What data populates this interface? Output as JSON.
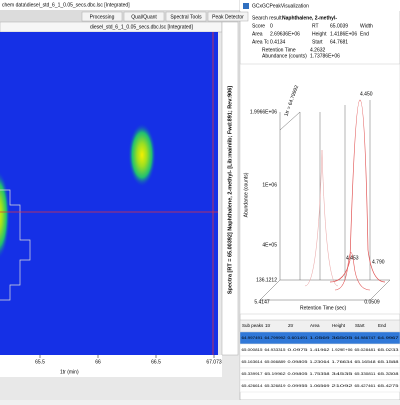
{
  "left_window": {
    "title": "chem data\\diesel_std_6_1_0.05_secs.dbc.lsc [Integrated]",
    "tabs": [
      "Processing",
      "Qual/Quant",
      "Spectral Tools",
      "Peak Detector"
    ],
    "plot_title": "diesel_std_6_1_0.05_secs.dbc.lsc [Integrated]",
    "spectra_label": "Spectra [RT = 65.00392] Naphthalene, 2-methyl- [Lib:mainlib; Fwd:891; Rev:906]",
    "x_ticks": [
      "65.5",
      "66",
      "66.5",
      "67.073"
    ],
    "x_label": "1tr (min)"
  },
  "right_window": {
    "title": "GCxGCPeakVisualization",
    "search_label": "Search result",
    "compound": "Naphthalene, 2-methyl-",
    "fields": [
      {
        "label": "Score",
        "value": "0"
      },
      {
        "label": "RT",
        "value": "65.0039"
      },
      {
        "label": "Area",
        "value": "2.69636E+06"
      },
      {
        "label": "Height",
        "value": "1.4186E+06"
      },
      {
        "label": "Area Tc",
        "value": "0.4134"
      },
      {
        "label": "Start",
        "value": "64.7681"
      }
    ],
    "extra_labels": [
      "Width",
      "End"
    ],
    "info": [
      {
        "label": "Retention Time",
        "value": "4.2632"
      },
      {
        "label": "Abundance (counts)",
        "value": "1.73786E+06"
      }
    ],
    "chart": {
      "y_ticks": [
        "1.9966E+06",
        "1E+06",
        "4E+05",
        "136.1212"
      ],
      "x_ticks": [
        "5.4147",
        "0.0509"
      ],
      "peak_labels": [
        "1tr = 64.79992",
        "4.450",
        "4.453",
        "4.790"
      ],
      "y_label": "Abundance (counts)",
      "x_label": "Retention Time (sec)"
    },
    "table": {
      "headers": [
        "Sub peaks",
        "1tr",
        "2tr",
        "Area",
        "Height",
        "Start",
        "End"
      ],
      "rows": [
        [
          "64.997491",
          "64.799992",
          "0.601491",
          "1.0569",
          "36505",
          "64.986747",
          "64.9967"
        ],
        [
          "65.000815",
          "64.933315",
          "0.0975",
          "1.41962",
          "1.929E+06",
          "65.028481",
          "65.0233"
        ],
        [
          "65.163614",
          "65.066889",
          "0.09805",
          "1.23064",
          "1.76634",
          "65.16548",
          "65.1588"
        ],
        [
          "65.339917",
          "65.19962",
          "0.09805",
          "1.75358",
          "34535",
          "65.330811",
          "65.3308"
        ],
        [
          "65.426614",
          "65.326819",
          "0.09955",
          "1.06569",
          "21092",
          "65.427461",
          "65.4275"
        ]
      ]
    }
  }
}
